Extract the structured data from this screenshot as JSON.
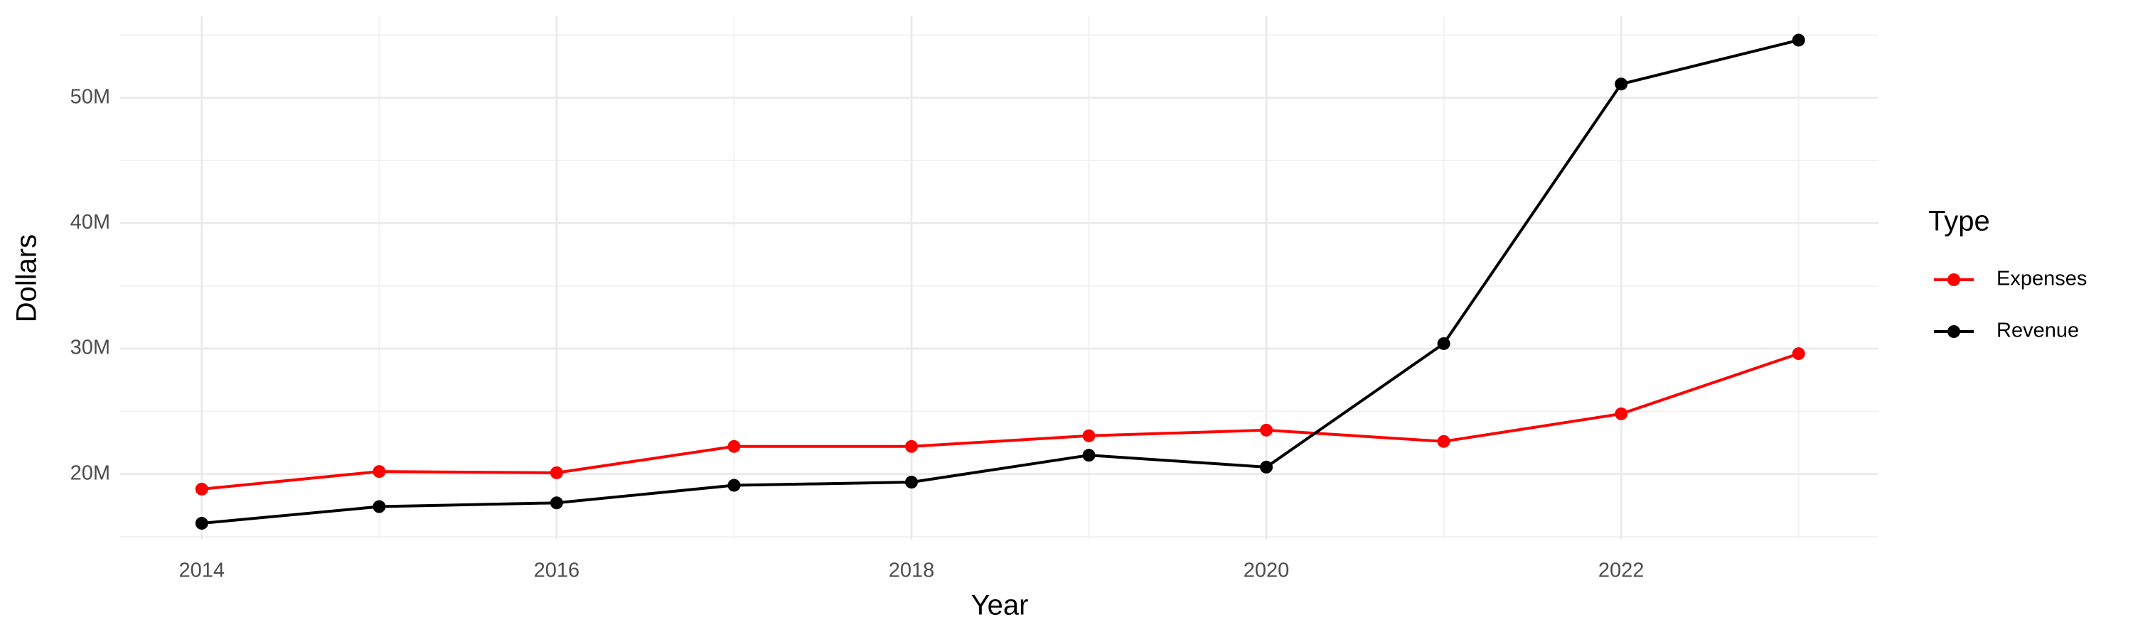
{
  "chart_data": {
    "type": "line",
    "x_label": "Year",
    "y_label": "Dollars",
    "legend_title": "Type",
    "x": [
      2014,
      2015,
      2016,
      2017,
      2018,
      2019,
      2020,
      2021,
      2022,
      2023
    ],
    "series": [
      {
        "name": "Expenses",
        "color": "#ff0000",
        "values": [
          18800000,
          20200000,
          20100000,
          22200000,
          22200000,
          23050000,
          23500000,
          22600000,
          24800000,
          29600000
        ]
      },
      {
        "name": "Revenue",
        "color": "#000000",
        "values": [
          16070000,
          17400000,
          17700000,
          19100000,
          19350000,
          21500000,
          20550000,
          30400000,
          51100000,
          54600000
        ]
      }
    ],
    "xlim": [
      2013.54,
      2023.45
    ],
    "xticks": [
      2014,
      2016,
      2018,
      2020,
      2022
    ],
    "ylim": [
      14770000,
      56500000
    ],
    "yticks": [
      {
        "value": 20000000,
        "label": "20M"
      },
      {
        "value": 30000000,
        "label": "30M"
      },
      {
        "value": 40000000,
        "label": "40M"
      },
      {
        "value": 50000000,
        "label": "50M"
      }
    ],
    "grid": true,
    "legend": "right"
  }
}
